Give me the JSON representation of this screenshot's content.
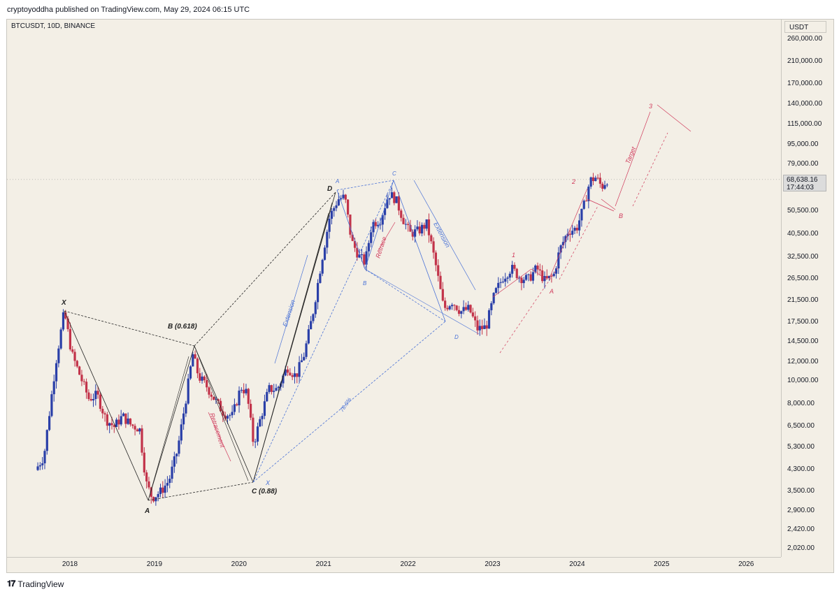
{
  "header": {
    "published": "cryptoyoddha published on TradingView.com, May 29, 2024 06:15 UTC"
  },
  "symbol": "BTCUSDT, 10D, BINANCE",
  "currency": "USDT",
  "last_price": {
    "value": "68,638.16",
    "countdown": "17:44:03"
  },
  "footer": {
    "brand": "TradingView"
  },
  "chart_data": {
    "type": "candlestick",
    "title": "",
    "symbol": "BTCUSDT",
    "interval": "10D",
    "exchange": "BINANCE",
    "y_scale": "log",
    "ylim": [
      1850,
      290000
    ],
    "y_ticks": [
      {
        "v": 260000,
        "label": "260,000.00"
      },
      {
        "v": 210000,
        "label": "210,000.00"
      },
      {
        "v": 170000,
        "label": "170,000.00"
      },
      {
        "v": 140000,
        "label": "140,000.00"
      },
      {
        "v": 115000,
        "label": "115,000.00"
      },
      {
        "v": 95000,
        "label": "95,000.00"
      },
      {
        "v": 79000,
        "label": "79,000.00"
      },
      {
        "v": 50500,
        "label": "50,500.00"
      },
      {
        "v": 40500,
        "label": "40,500.00"
      },
      {
        "v": 32500,
        "label": "32,500.00"
      },
      {
        "v": 26500,
        "label": "26,500.00"
      },
      {
        "v": 21500,
        "label": "21,500.00"
      },
      {
        "v": 17500,
        "label": "17,500.00"
      },
      {
        "v": 14500,
        "label": "14,500.00"
      },
      {
        "v": 12000,
        "label": "12,000.00"
      },
      {
        "v": 10000,
        "label": "10,000.00"
      },
      {
        "v": 8000,
        "label": "8,000.00"
      },
      {
        "v": 6500,
        "label": "6,500.00"
      },
      {
        "v": 5300,
        "label": "5,300.00"
      },
      {
        "v": 4300,
        "label": "4,300.00"
      },
      {
        "v": 3500,
        "label": "3,500.00"
      },
      {
        "v": 2900,
        "label": "2,900.00"
      },
      {
        "v": 2420,
        "label": "2,420.00"
      },
      {
        "v": 2020,
        "label": "2,020.00"
      }
    ],
    "x_ticks": [
      "2018",
      "2019",
      "2020",
      "2021",
      "2022",
      "2023",
      "2024",
      "2025",
      "2026"
    ],
    "xlim": [
      2017.6,
      2026.8
    ],
    "last_value": 68638.16,
    "colors": {
      "up": "#2a3fa8",
      "down": "#c2334a",
      "bg": "#f3efe6",
      "black": "#222222",
      "blue": "#4a72d6",
      "red": "#d03a5b"
    },
    "path": [
      [
        2017.62,
        4300
      ],
      [
        2017.72,
        4900
      ],
      [
        2017.86,
        12000
      ],
      [
        2017.96,
        19500
      ],
      [
        2018.05,
        13000
      ],
      [
        2018.15,
        10500
      ],
      [
        2018.25,
        8500
      ],
      [
        2018.35,
        8800
      ],
      [
        2018.45,
        7000
      ],
      [
        2018.55,
        6500
      ],
      [
        2018.65,
        7200
      ],
      [
        2018.75,
        6600
      ],
      [
        2018.85,
        6400
      ],
      [
        2018.93,
        3800
      ],
      [
        2019.0,
        3300
      ],
      [
        2019.1,
        3500
      ],
      [
        2019.2,
        3900
      ],
      [
        2019.3,
        5200
      ],
      [
        2019.4,
        8500
      ],
      [
        2019.48,
        13000
      ],
      [
        2019.55,
        10500
      ],
      [
        2019.65,
        9500
      ],
      [
        2019.75,
        8300
      ],
      [
        2019.85,
        7400
      ],
      [
        2019.95,
        7200
      ],
      [
        2020.05,
        9500
      ],
      [
        2020.12,
        9000
      ],
      [
        2020.2,
        5500
      ],
      [
        2020.28,
        7000
      ],
      [
        2020.38,
        9300
      ],
      [
        2020.48,
        9300
      ],
      [
        2020.6,
        11500
      ],
      [
        2020.7,
        10500
      ],
      [
        2020.8,
        13000
      ],
      [
        2020.9,
        19000
      ],
      [
        2021.0,
        31000
      ],
      [
        2021.1,
        48000
      ],
      [
        2021.2,
        57000
      ],
      [
        2021.28,
        58000
      ],
      [
        2021.36,
        38000
      ],
      [
        2021.45,
        33000
      ],
      [
        2021.52,
        31000
      ],
      [
        2021.6,
        45000
      ],
      [
        2021.7,
        47000
      ],
      [
        2021.8,
        60000
      ],
      [
        2021.88,
        57000
      ],
      [
        2021.97,
        47000
      ],
      [
        2022.05,
        41000
      ],
      [
        2022.15,
        42000
      ],
      [
        2022.25,
        45000
      ],
      [
        2022.35,
        31000
      ],
      [
        2022.45,
        20000
      ],
      [
        2022.55,
        21500
      ],
      [
        2022.65,
        19500
      ],
      [
        2022.75,
        20000
      ],
      [
        2022.85,
        16500
      ],
      [
        2022.95,
        16800
      ],
      [
        2023.05,
        23000
      ],
      [
        2023.15,
        27000
      ],
      [
        2023.25,
        29500
      ],
      [
        2023.35,
        27000
      ],
      [
        2023.45,
        26500
      ],
      [
        2023.55,
        29500
      ],
      [
        2023.65,
        26000
      ],
      [
        2023.75,
        27500
      ],
      [
        2023.82,
        35000
      ],
      [
        2023.92,
        42000
      ],
      [
        2024.02,
        43000
      ],
      [
        2024.1,
        52000
      ],
      [
        2024.18,
        68000
      ],
      [
        2024.25,
        70000
      ],
      [
        2024.32,
        64000
      ],
      [
        2024.38,
        68600
      ]
    ],
    "annotations": [
      {
        "text": "X",
        "color": "black"
      },
      {
        "text": "A",
        "color": "black"
      },
      {
        "text": "B (0.618)",
        "color": "black"
      },
      {
        "text": "C (0.88)",
        "color": "black"
      },
      {
        "text": "D",
        "color": "black"
      },
      {
        "text": "Retracement",
        "color": "red"
      },
      {
        "text": "Extension",
        "color": "blue"
      },
      {
        "text": "78.6%",
        "color": "blue"
      },
      {
        "text": "X",
        "color": "blue"
      },
      {
        "text": "A",
        "color": "blue"
      },
      {
        "text": "B",
        "color": "blue"
      },
      {
        "text": "C",
        "color": "blue"
      },
      {
        "text": "D",
        "color": "blue"
      },
      {
        "text": "Retrace",
        "color": "red"
      },
      {
        "text": "Extension",
        "color": "blue"
      },
      {
        "text": "1",
        "color": "red"
      },
      {
        "text": "2",
        "color": "red"
      },
      {
        "text": "3",
        "color": "red"
      },
      {
        "text": "A",
        "color": "red"
      },
      {
        "text": "B",
        "color": "red"
      },
      {
        "text": "Target",
        "color": "red"
      }
    ]
  }
}
